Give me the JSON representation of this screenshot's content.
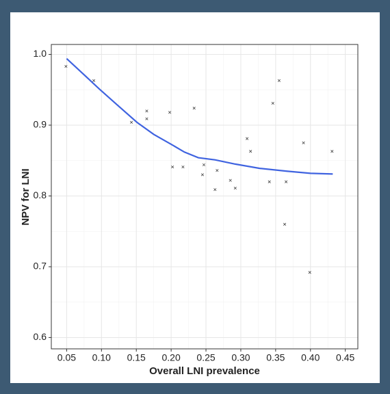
{
  "chart_data": {
    "type": "scatter",
    "x_label": "Overall LNI prevalence",
    "y_label": "NPV for LNI",
    "points": {
      "color": "#444444",
      "x": [
        0.049,
        0.089,
        0.143,
        0.165,
        0.165,
        0.198,
        0.202,
        0.217,
        0.233,
        0.247,
        0.245,
        0.263,
        0.266,
        0.285,
        0.292,
        0.309,
        0.314,
        0.341,
        0.346,
        0.355,
        0.365,
        0.363,
        0.39,
        0.399,
        0.431
      ],
      "y": [
        0.983,
        0.963,
        0.904,
        0.92,
        0.909,
        0.918,
        0.841,
        0.841,
        0.924,
        0.844,
        0.83,
        0.809,
        0.836,
        0.822,
        0.811,
        0.881,
        0.863,
        0.82,
        0.931,
        0.963,
        0.82,
        0.76,
        0.875,
        0.692,
        0.863
      ]
    },
    "smooth": {
      "color": "#3f63e0",
      "x": [
        0.05,
        0.072,
        0.097,
        0.121,
        0.151,
        0.175,
        0.2,
        0.219,
        0.239,
        0.263,
        0.292,
        0.327,
        0.366,
        0.4,
        0.432
      ],
      "y": [
        0.994,
        0.974,
        0.951,
        0.93,
        0.904,
        0.887,
        0.873,
        0.862,
        0.854,
        0.851,
        0.845,
        0.839,
        0.835,
        0.832,
        0.831
      ]
    },
    "xlim": [
      0.028,
      0.468
    ],
    "ylim": [
      0.584,
      1.014
    ],
    "xticks": [
      0.05,
      {
        "value": 0.1,
        "label": "0.10"
      },
      0.15,
      {
        "value": 0.2,
        "label": "0.20"
      },
      0.25,
      {
        "value": 0.3,
        "label": "0.30"
      },
      0.35,
      {
        "value": 0.4,
        "label": "0.40"
      },
      0.45
    ],
    "yticks": [
      0.6,
      0.7,
      0.8,
      0.9,
      {
        "value": 1.0,
        "label": "1.0"
      }
    ],
    "grid": true,
    "minor_grid": true
  }
}
